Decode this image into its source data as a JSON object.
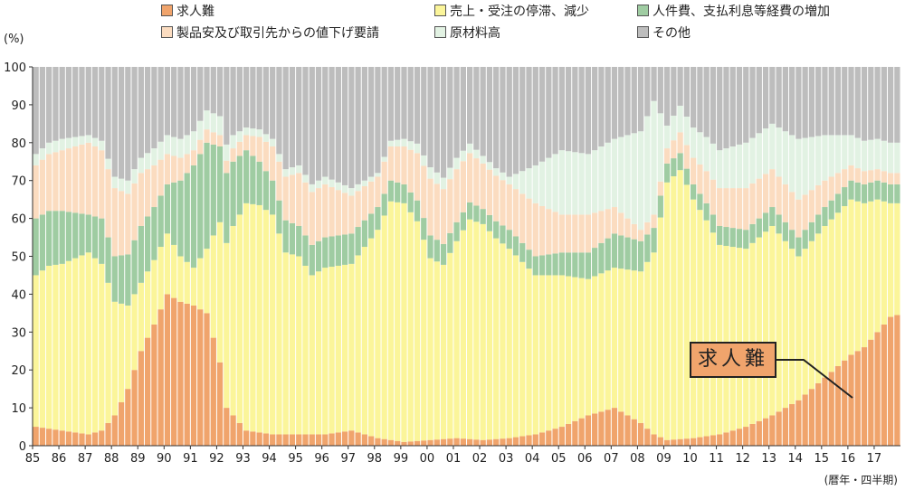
{
  "legend": {
    "items": [
      {
        "label": "求人難",
        "color": "#f0a46c"
      },
      {
        "label": "売上・受注の停滞、減少",
        "color": "#fbf59a"
      },
      {
        "label": "人件費、支払利息等経費の増加",
        "color": "#9fcca2"
      },
      {
        "label": "製品安及び取引先からの値下げ要請",
        "color": "#fbdcc0"
      },
      {
        "label": "原材料高",
        "color": "#e2f2e3"
      },
      {
        "label": "その他",
        "color": "#bdbdbd"
      }
    ]
  },
  "chart_data": {
    "type": "bar",
    "stacked": true,
    "title": "",
    "ylabel": "(%)",
    "xlabel": "(暦年・四半期)",
    "ylim": [
      0,
      100
    ],
    "yticks": [
      0,
      10,
      20,
      30,
      40,
      50,
      60,
      70,
      80,
      90,
      100
    ],
    "grid": false,
    "legend_position": "top",
    "x_year_labels": [
      "85",
      "86",
      "87",
      "88",
      "89",
      "90",
      "91",
      "92",
      "93",
      "94",
      "95",
      "96",
      "97",
      "98",
      "99",
      "00",
      "01",
      "02",
      "03",
      "04",
      "05",
      "06",
      "07",
      "08",
      "09",
      "10",
      "11",
      "12",
      "13",
      "14",
      "15",
      "16",
      "17"
    ],
    "quarters_per_year": 4,
    "annotation": {
      "text": "求人難"
    },
    "series_anchors": [
      {
        "name": "求人難",
        "color": "#f0a46c",
        "points": [
          [
            1985.0,
            5
          ],
          [
            1986.0,
            4
          ],
          [
            1987.0,
            3
          ],
          [
            1987.5,
            4
          ],
          [
            1988.0,
            8
          ],
          [
            1988.5,
            15
          ],
          [
            1989.0,
            25
          ],
          [
            1989.5,
            32
          ],
          [
            1990.0,
            40
          ],
          [
            1990.5,
            38
          ],
          [
            1991.0,
            37
          ],
          [
            1991.5,
            35
          ],
          [
            1992.0,
            22
          ],
          [
            1992.25,
            10
          ],
          [
            1993.0,
            4
          ],
          [
            1994.0,
            3
          ],
          [
            1995.0,
            3
          ],
          [
            1996.0,
            3
          ],
          [
            1997.0,
            4
          ],
          [
            1998.0,
            2
          ],
          [
            1999.0,
            1
          ],
          [
            2000.0,
            1.5
          ],
          [
            2001.0,
            2
          ],
          [
            2002.0,
            1.5
          ],
          [
            2003.0,
            2
          ],
          [
            2004.0,
            3
          ],
          [
            2005.0,
            5
          ],
          [
            2006.0,
            8
          ],
          [
            2007.0,
            10
          ],
          [
            2008.0,
            6
          ],
          [
            2008.5,
            3
          ],
          [
            2009.0,
            1.5
          ],
          [
            2010.0,
            2
          ],
          [
            2011.0,
            3
          ],
          [
            2012.0,
            5
          ],
          [
            2013.0,
            8
          ],
          [
            2014.0,
            12
          ],
          [
            2015.0,
            18
          ],
          [
            2016.0,
            24
          ],
          [
            2016.5,
            26
          ],
          [
            2017.0,
            30
          ],
          [
            2017.5,
            34
          ],
          [
            2017.75,
            34.5
          ]
        ]
      },
      {
        "name": "売上・受注の停滞、減少",
        "color": "#fbf59a",
        "points": [
          [
            1985.0,
            40
          ],
          [
            1985.5,
            43
          ],
          [
            1986.0,
            44
          ],
          [
            1986.5,
            46
          ],
          [
            1987.0,
            48
          ],
          [
            1987.5,
            44
          ],
          [
            1988.0,
            30
          ],
          [
            1988.5,
            22
          ],
          [
            1989.0,
            18
          ],
          [
            1989.5,
            17
          ],
          [
            1990.0,
            16
          ],
          [
            1990.5,
            12
          ],
          [
            1991.0,
            10
          ],
          [
            1991.5,
            17
          ],
          [
            1992.0,
            37
          ],
          [
            1992.5,
            50
          ],
          [
            1993.0,
            60
          ],
          [
            1993.5,
            60
          ],
          [
            1994.0,
            58
          ],
          [
            1994.5,
            48
          ],
          [
            1995.0,
            47
          ],
          [
            1995.5,
            42
          ],
          [
            1996.0,
            44
          ],
          [
            1997.0,
            44
          ],
          [
            1998.0,
            55
          ],
          [
            1998.5,
            63
          ],
          [
            1999.0,
            63
          ],
          [
            1999.5,
            58
          ],
          [
            2000.0,
            48
          ],
          [
            2000.5,
            46
          ],
          [
            2001.0,
            52
          ],
          [
            2001.5,
            58
          ],
          [
            2002.0,
            57
          ],
          [
            2002.5,
            53
          ],
          [
            2003.0,
            50
          ],
          [
            2004.0,
            42
          ],
          [
            2005.0,
            40
          ],
          [
            2006.0,
            36
          ],
          [
            2007.0,
            37
          ],
          [
            2008.0,
            40
          ],
          [
            2008.5,
            48
          ],
          [
            2009.0,
            68
          ],
          [
            2009.5,
            71
          ],
          [
            2010.0,
            63
          ],
          [
            2010.5,
            57
          ],
          [
            2011.0,
            50
          ],
          [
            2012.0,
            47
          ],
          [
            2013.0,
            50
          ],
          [
            2014.0,
            38
          ],
          [
            2015.0,
            40
          ],
          [
            2016.0,
            41
          ],
          [
            2016.5,
            38
          ],
          [
            2017.0,
            35
          ],
          [
            2017.5,
            30
          ],
          [
            2017.75,
            29.5
          ]
        ]
      },
      {
        "name": "人件費、支払利息等経費の増加",
        "color": "#9fcca2",
        "points": [
          [
            1985.0,
            15
          ],
          [
            1986.0,
            14
          ],
          [
            1987.0,
            10
          ],
          [
            1987.5,
            12
          ],
          [
            1988.0,
            12
          ],
          [
            1989.0,
            15
          ],
          [
            1990.0,
            13
          ],
          [
            1990.5,
            20
          ],
          [
            1991.0,
            27
          ],
          [
            1991.5,
            28
          ],
          [
            1992.0,
            20
          ],
          [
            1992.5,
            17
          ],
          [
            1993.0,
            14
          ],
          [
            1994.0,
            9
          ],
          [
            1995.0,
            8
          ],
          [
            1996.0,
            8
          ],
          [
            1997.0,
            8
          ],
          [
            1998.0,
            6
          ],
          [
            1999.0,
            5
          ],
          [
            2000.0,
            6
          ],
          [
            2001.0,
            5
          ],
          [
            2002.0,
            4
          ],
          [
            2003.0,
            5
          ],
          [
            2004.0,
            5
          ],
          [
            2005.0,
            6
          ],
          [
            2006.0,
            7
          ],
          [
            2007.0,
            9
          ],
          [
            2008.0,
            8
          ],
          [
            2009.0,
            5
          ],
          [
            2010.0,
            4
          ],
          [
            2011.0,
            5
          ],
          [
            2012.0,
            5
          ],
          [
            2013.0,
            5
          ],
          [
            2014.0,
            5
          ],
          [
            2015.0,
            5
          ],
          [
            2016.0,
            5
          ],
          [
            2017.0,
            5
          ],
          [
            2017.75,
            5
          ]
        ]
      },
      {
        "name": "製品安及び取引先からの値下げ要請",
        "color": "#fbdcc0",
        "points": [
          [
            1985.0,
            14
          ],
          [
            1986.0,
            16
          ],
          [
            1987.0,
            19
          ],
          [
            1987.5,
            18
          ],
          [
            1988.0,
            18
          ],
          [
            1989.0,
            14
          ],
          [
            1990.0,
            8
          ],
          [
            1991.0,
            4
          ],
          [
            1992.0,
            3
          ],
          [
            1993.0,
            4
          ],
          [
            1994.0,
            9
          ],
          [
            1995.0,
            14
          ],
          [
            1996.0,
            14
          ],
          [
            1997.0,
            10
          ],
          [
            1998.0,
            8
          ],
          [
            1999.0,
            10
          ],
          [
            2000.0,
            15
          ],
          [
            2001.0,
            14
          ],
          [
            2002.0,
            12
          ],
          [
            2003.0,
            12
          ],
          [
            2004.0,
            14
          ],
          [
            2005.0,
            10
          ],
          [
            2006.0,
            10
          ],
          [
            2007.0,
            7
          ],
          [
            2008.0,
            3
          ],
          [
            2009.0,
            4
          ],
          [
            2010.0,
            7
          ],
          [
            2011.0,
            10
          ],
          [
            2012.0,
            11
          ],
          [
            2013.0,
            10
          ],
          [
            2014.0,
            10
          ],
          [
            2015.0,
            7
          ],
          [
            2016.0,
            4
          ],
          [
            2017.0,
            3
          ],
          [
            2017.75,
            3
          ]
        ]
      },
      {
        "name": "原材料高",
        "color": "#e2f2e3",
        "points": [
          [
            1985.0,
            3
          ],
          [
            1986.0,
            3
          ],
          [
            1987.0,
            2
          ],
          [
            1988.0,
            3
          ],
          [
            1989.0,
            4
          ],
          [
            1990.0,
            5
          ],
          [
            1991.0,
            5
          ],
          [
            1992.0,
            5
          ],
          [
            1993.0,
            2
          ],
          [
            1994.0,
            2
          ],
          [
            1995.0,
            2
          ],
          [
            1996.0,
            2
          ],
          [
            1997.0,
            2
          ],
          [
            1998.0,
            1
          ],
          [
            1999.0,
            2
          ],
          [
            2000.0,
            3
          ],
          [
            2001.0,
            3
          ],
          [
            2002.0,
            2
          ],
          [
            2003.0,
            2
          ],
          [
            2004.0,
            10
          ],
          [
            2005.0,
            17
          ],
          [
            2006.0,
            16
          ],
          [
            2007.0,
            18
          ],
          [
            2008.0,
            26
          ],
          [
            2008.5,
            30
          ],
          [
            2009.0,
            6
          ],
          [
            2010.0,
            8
          ],
          [
            2011.0,
            10
          ],
          [
            2012.0,
            12
          ],
          [
            2013.0,
            12
          ],
          [
            2014.0,
            16
          ],
          [
            2015.0,
            12
          ],
          [
            2016.0,
            8
          ],
          [
            2017.0,
            8
          ],
          [
            2017.75,
            8
          ]
        ]
      }
    ],
    "remainder_series": {
      "name": "その他",
      "color": "#bdbdbd"
    }
  },
  "axes": {
    "y_unit": "(%)",
    "x_unit": "(暦年・四半期)"
  }
}
